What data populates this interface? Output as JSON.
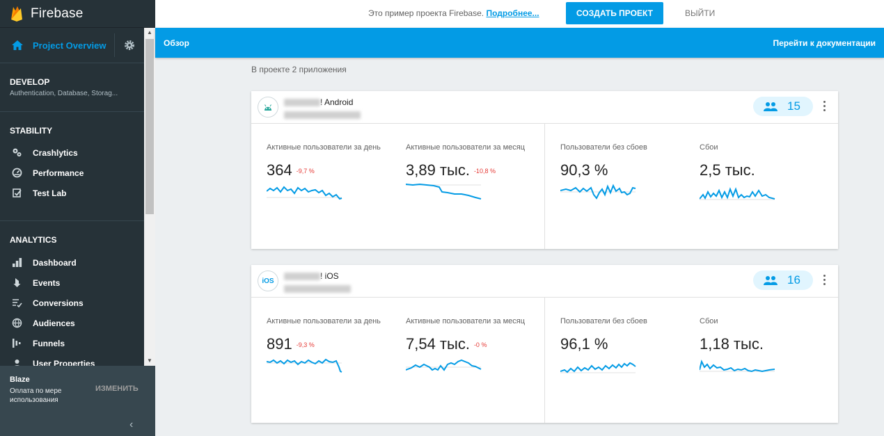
{
  "sidebar": {
    "brand": "Firebase",
    "project_overview": "Project Overview",
    "develop": {
      "title": "DEVELOP",
      "subtitle": "Authentication, Database, Storag..."
    },
    "stability": {
      "title": "STABILITY",
      "items": [
        {
          "label": "Crashlytics",
          "icon": "crashlytics-icon"
        },
        {
          "label": "Performance",
          "icon": "performance-icon"
        },
        {
          "label": "Test Lab",
          "icon": "testlab-icon"
        }
      ]
    },
    "analytics": {
      "title": "ANALYTICS",
      "items": [
        {
          "label": "Dashboard",
          "icon": "dashboard-icon"
        },
        {
          "label": "Events",
          "icon": "events-icon"
        },
        {
          "label": "Conversions",
          "icon": "conversions-icon"
        },
        {
          "label": "Audiences",
          "icon": "audiences-icon"
        },
        {
          "label": "Funnels",
          "icon": "funnels-icon"
        },
        {
          "label": "User Properties",
          "icon": "user-properties-icon"
        }
      ]
    },
    "plan": {
      "title": "Blaze",
      "subtitle": "Оплата по мере использования",
      "change": "ИЗМЕНИТЬ"
    }
  },
  "topbar": {
    "notice": "Это пример проекта Firebase.",
    "notice_link": "Подробнее...",
    "create_button": "СОЗДАТЬ ПРОЕКТ",
    "logout": "ВЫЙТИ"
  },
  "header": {
    "title": "Обзор",
    "docs_link": "Перейти к документации"
  },
  "apps_count": "В проекте 2 приложения",
  "apps": [
    {
      "name_suffix": "! Android",
      "platform": "android",
      "users": "15",
      "metrics": [
        {
          "label": "Активные пользователи за день",
          "value": "364",
          "delta": "-9,7 %"
        },
        {
          "label": "Активные пользователи за месяц",
          "value": "3,89 тыс.",
          "delta": "-10,8 %"
        },
        {
          "label": "Пользователи без сбоев",
          "value": "90,3 %",
          "delta": ""
        },
        {
          "label": "Сбои",
          "value": "2,5 тыс.",
          "delta": ""
        }
      ]
    },
    {
      "name_suffix": "! iOS",
      "platform": "ios",
      "platform_label": "iOS",
      "users": "16",
      "metrics": [
        {
          "label": "Активные пользователи за день",
          "value": "891",
          "delta": "-9,3 %"
        },
        {
          "label": "Активные пользователи за месяц",
          "value": "7,54 тыс.",
          "delta": "-0 %"
        },
        {
          "label": "Пользователи без сбоев",
          "value": "96,1 %",
          "delta": ""
        },
        {
          "label": "Сбои",
          "value": "1,18 тыс.",
          "delta": ""
        }
      ]
    }
  ],
  "colors": {
    "accent": "#039be5",
    "sidebar": "#263238",
    "negative": "#e53935"
  }
}
